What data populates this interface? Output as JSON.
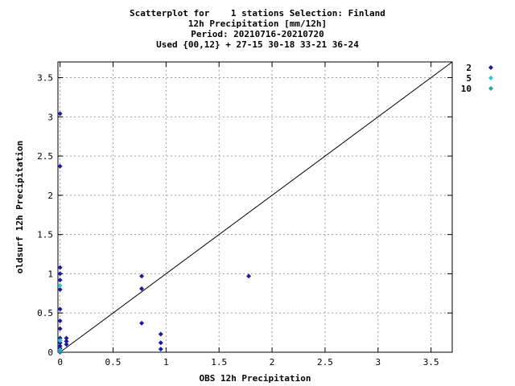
{
  "chart_data": {
    "type": "scatter",
    "title_lines": [
      "Scatterplot for    1 stations Selection: Finland",
      "12h Precipitation [mm/12h]",
      "Period: 20210716-20210720",
      "Used {00,12} + 27-15 30-18 33-21 36-24"
    ],
    "xlabel": "OBS 12h Precipitation",
    "ylabel": "oldsurf 12h Precipitation",
    "xlim": [
      -0.02,
      3.7
    ],
    "ylim": [
      0,
      3.7
    ],
    "xticks": [
      0,
      0.5,
      1,
      1.5,
      2,
      2.5,
      3,
      3.5
    ],
    "yticks": [
      0,
      0.5,
      1,
      1.5,
      2,
      2.5,
      3,
      3.5
    ],
    "xtick_labels": [
      "0",
      "0.5",
      "1",
      "1.5",
      "2",
      "2.5",
      "3",
      "3.5"
    ],
    "ytick_labels": [
      "0",
      "0.5",
      "1",
      "1.5",
      "2",
      "2.5",
      "3",
      "3.5"
    ],
    "grid": true,
    "legend_position": "top-right outside",
    "diagonal": true,
    "series": [
      {
        "name": "2",
        "color": "#1a1aa0",
        "points": [
          [
            0,
            3.04
          ],
          [
            0,
            2.37
          ],
          [
            0,
            1.08
          ],
          [
            0,
            1.0
          ],
          [
            0,
            0.92
          ],
          [
            0,
            0.8
          ],
          [
            0,
            0.55
          ],
          [
            0,
            0.4
          ],
          [
            0,
            0.3
          ],
          [
            0,
            0.18
          ],
          [
            0,
            0.12
          ],
          [
            0,
            0.08
          ],
          [
            0,
            0.05
          ],
          [
            0,
            0.0
          ],
          [
            0.06,
            0.18
          ],
          [
            0.06,
            0.14
          ],
          [
            0.06,
            0.1
          ],
          [
            0.77,
            0.97
          ],
          [
            0.77,
            0.81
          ],
          [
            0.77,
            0.37
          ],
          [
            0.95,
            0.23
          ],
          [
            0.95,
            0.12
          ],
          [
            0.95,
            0.04
          ],
          [
            1.78,
            0.97
          ]
        ]
      },
      {
        "name": "5",
        "color": "#2ec4d0",
        "points": [
          [
            0,
            0.85
          ],
          [
            0,
            0.15
          ],
          [
            0,
            0.03
          ]
        ]
      },
      {
        "name": "10",
        "color": "#1faaa0",
        "points": [
          [
            0,
            0.01
          ]
        ]
      }
    ]
  }
}
